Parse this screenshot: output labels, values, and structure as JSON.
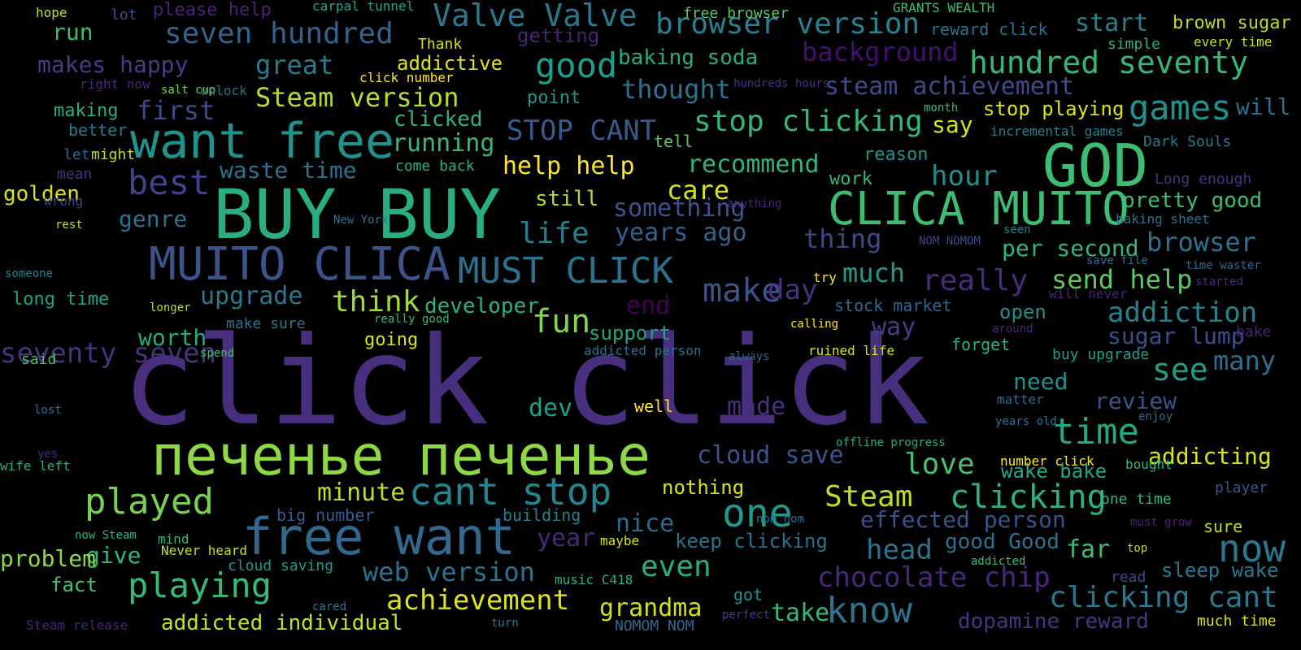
{
  "words": [
    {
      "text": "click click"
    },
    {
      "text": "печенье печенье"
    },
    {
      "text": "BUY BUY"
    },
    {
      "text": "free want"
    },
    {
      "text": "want free"
    },
    {
      "text": "GOD"
    },
    {
      "text": "CLICA MUITO"
    },
    {
      "text": "MUITO CLICA"
    },
    {
      "text": "MUST CLICK"
    },
    {
      "text": "cant stop"
    },
    {
      "text": "one"
    },
    {
      "text": "now"
    },
    {
      "text": "know"
    },
    {
      "text": "time"
    },
    {
      "text": "played"
    },
    {
      "text": "playing"
    },
    {
      "text": "best"
    },
    {
      "text": "good"
    },
    {
      "text": "games"
    },
    {
      "text": "Valve Valve"
    },
    {
      "text": "browser version"
    },
    {
      "text": "hundred seventy"
    },
    {
      "text": "seven hundred"
    },
    {
      "text": "stop clicking"
    },
    {
      "text": "Steam version"
    },
    {
      "text": "steam achievement"
    },
    {
      "text": "seventy seven"
    },
    {
      "text": "clicking"
    },
    {
      "text": "clicking cant"
    },
    {
      "text": "chocolate chip"
    },
    {
      "text": "achievement"
    },
    {
      "text": "web version"
    },
    {
      "text": "Steam"
    },
    {
      "text": "fun"
    },
    {
      "text": "make"
    },
    {
      "text": "day"
    },
    {
      "text": "really"
    },
    {
      "text": "addiction"
    },
    {
      "text": "browser"
    },
    {
      "text": "send help"
    },
    {
      "text": "love"
    },
    {
      "text": "even"
    },
    {
      "text": "head"
    },
    {
      "text": "grandma"
    },
    {
      "text": "think"
    },
    {
      "text": "life"
    },
    {
      "text": "thing"
    },
    {
      "text": "much"
    },
    {
      "text": "hour"
    },
    {
      "text": "care"
    },
    {
      "text": "background"
    },
    {
      "text": "thought"
    },
    {
      "text": "run"
    },
    {
      "text": "makes happy"
    },
    {
      "text": "first"
    },
    {
      "text": "great"
    },
    {
      "text": "say"
    },
    {
      "text": "start"
    },
    {
      "text": "pretty good"
    },
    {
      "text": "per second"
    },
    {
      "text": "help help"
    },
    {
      "text": "running"
    },
    {
      "text": "clicked"
    },
    {
      "text": "STOP CANT"
    },
    {
      "text": "recommend"
    },
    {
      "text": "something"
    },
    {
      "text": "years ago"
    },
    {
      "text": "waste time"
    },
    {
      "text": "genre"
    },
    {
      "text": "upgrade"
    },
    {
      "text": "developer"
    },
    {
      "text": "end"
    },
    {
      "text": "way"
    },
    {
      "text": "worth"
    },
    {
      "text": "support"
    },
    {
      "text": "see"
    },
    {
      "text": "many"
    },
    {
      "text": "review"
    },
    {
      "text": "sugar lump"
    },
    {
      "text": "need"
    },
    {
      "text": "addicting"
    },
    {
      "text": "made"
    },
    {
      "text": "dev"
    },
    {
      "text": "cloud save"
    },
    {
      "text": "minute"
    },
    {
      "text": "nothing"
    },
    {
      "text": "nice"
    },
    {
      "text": "year"
    },
    {
      "text": "give"
    },
    {
      "text": "wake bake"
    },
    {
      "text": "effected person"
    },
    {
      "text": "far"
    },
    {
      "text": "good Good"
    },
    {
      "text": "keep clicking"
    },
    {
      "text": "take"
    },
    {
      "text": "addicted individual"
    },
    {
      "text": "dopamine reward"
    },
    {
      "text": "problem"
    },
    {
      "text": "long time"
    },
    {
      "text": "golden"
    },
    {
      "text": "fact"
    },
    {
      "text": "sleep wake"
    },
    {
      "text": "much time"
    },
    {
      "text": "still"
    },
    {
      "text": "baking soda"
    },
    {
      "text": "addictive"
    },
    {
      "text": "getting"
    },
    {
      "text": "point"
    },
    {
      "text": "big number"
    },
    {
      "text": "building"
    },
    {
      "text": "cloud saving"
    },
    {
      "text": "stock market"
    },
    {
      "text": "open"
    },
    {
      "text": "buy upgrade"
    },
    {
      "text": "bake"
    },
    {
      "text": "will"
    },
    {
      "text": "sure"
    },
    {
      "text": "player"
    },
    {
      "text": "stop playing"
    },
    {
      "text": "brown sugar"
    },
    {
      "text": "reward click"
    },
    {
      "text": "free browser"
    },
    {
      "text": "GRANTS WEALTH"
    },
    {
      "text": "carpal tunnel"
    },
    {
      "text": "please help"
    },
    {
      "text": "lot"
    },
    {
      "text": "hope"
    },
    {
      "text": "Thank"
    },
    {
      "text": "click number"
    },
    {
      "text": "right now"
    },
    {
      "text": "salt cup"
    },
    {
      "text": "unlock"
    },
    {
      "text": "making"
    },
    {
      "text": "better"
    },
    {
      "text": "let"
    },
    {
      "text": "might"
    },
    {
      "text": "mean"
    },
    {
      "text": "wrong"
    },
    {
      "text": "rest"
    },
    {
      "text": "New York"
    },
    {
      "text": "someone"
    },
    {
      "text": "longer"
    },
    {
      "text": "said"
    },
    {
      "text": "spend"
    },
    {
      "text": "lost"
    },
    {
      "text": "wife left"
    },
    {
      "text": "yes"
    },
    {
      "text": "Steam release"
    },
    {
      "text": "cared"
    },
    {
      "text": "turn"
    },
    {
      "text": "NOMOM NOM"
    },
    {
      "text": "perfect"
    },
    {
      "text": "got"
    },
    {
      "text": "music C418"
    },
    {
      "text": "offline progress"
    },
    {
      "text": "number click"
    },
    {
      "text": "one time"
    },
    {
      "text": "must grow"
    },
    {
      "text": "top"
    },
    {
      "text": "addicted"
    },
    {
      "text": "read"
    },
    {
      "text": "matter"
    },
    {
      "text": "years old"
    },
    {
      "text": "enjoy"
    },
    {
      "text": "bought"
    },
    {
      "text": "nom nom"
    },
    {
      "text": "maybe"
    },
    {
      "text": "mind"
    },
    {
      "text": "now Steam"
    },
    {
      "text": "Never heard"
    },
    {
      "text": "addicted person"
    },
    {
      "text": "ruined life"
    },
    {
      "text": "calling"
    },
    {
      "text": "always"
    },
    {
      "text": "around"
    },
    {
      "text": "forget"
    },
    {
      "text": "will never"
    },
    {
      "text": "started"
    },
    {
      "text": "time waster"
    },
    {
      "text": "save file"
    },
    {
      "text": "baking sheet"
    },
    {
      "text": "Long enough"
    },
    {
      "text": "Dark Souls"
    },
    {
      "text": "incremental games"
    },
    {
      "text": "month"
    },
    {
      "text": "every time"
    },
    {
      "text": "simple"
    },
    {
      "text": "hundreds hours"
    },
    {
      "text": "NOM NOMOM"
    },
    {
      "text": "seen"
    },
    {
      "text": "reason"
    },
    {
      "text": "work"
    },
    {
      "text": "tell"
    },
    {
      "text": "come back"
    },
    {
      "text": "anything"
    },
    {
      "text": "try"
    },
    {
      "text": "going"
    },
    {
      "text": "make sure"
    },
    {
      "text": "really good"
    },
    {
      "text": "well"
    }
  ]
}
